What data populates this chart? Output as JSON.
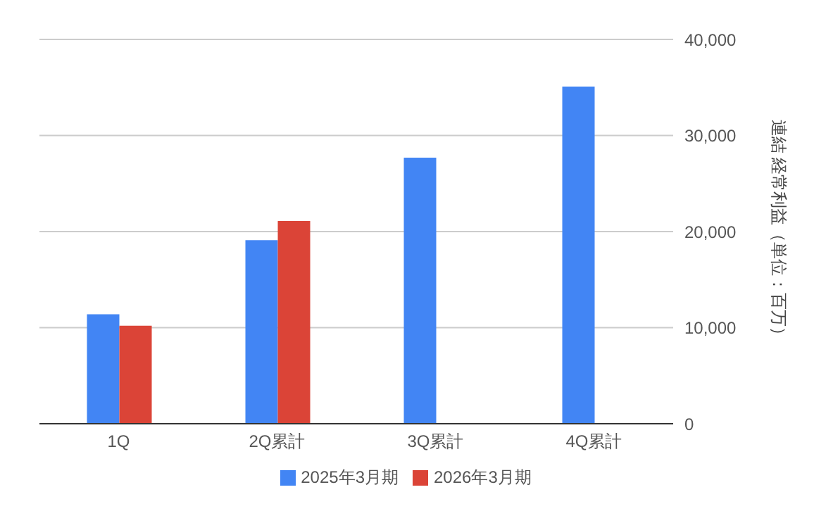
{
  "chart_data": {
    "type": "bar",
    "categories": [
      "1Q",
      "2Q累計",
      "3Q累計",
      "4Q累計"
    ],
    "series": [
      {
        "name": "2025年3月期",
        "color": "#4285f4",
        "values": [
          11400,
          19100,
          27700,
          35100
        ]
      },
      {
        "name": "2026年3月期",
        "color": "#db4437",
        "values": [
          10200,
          21100,
          null,
          null
        ]
      }
    ],
    "ylabel": "連結 経常利益（単位：百万）",
    "ylim": [
      0,
      40000
    ],
    "yticks": [
      0,
      {
        "value": 10000,
        "label": "10,000"
      },
      {
        "value": 20000,
        "label": "20,000"
      },
      {
        "value": 30000,
        "label": "30,000"
      },
      {
        "value": 40000,
        "label": "40,000"
      }
    ],
    "grid": "y",
    "legend": "bottom"
  }
}
